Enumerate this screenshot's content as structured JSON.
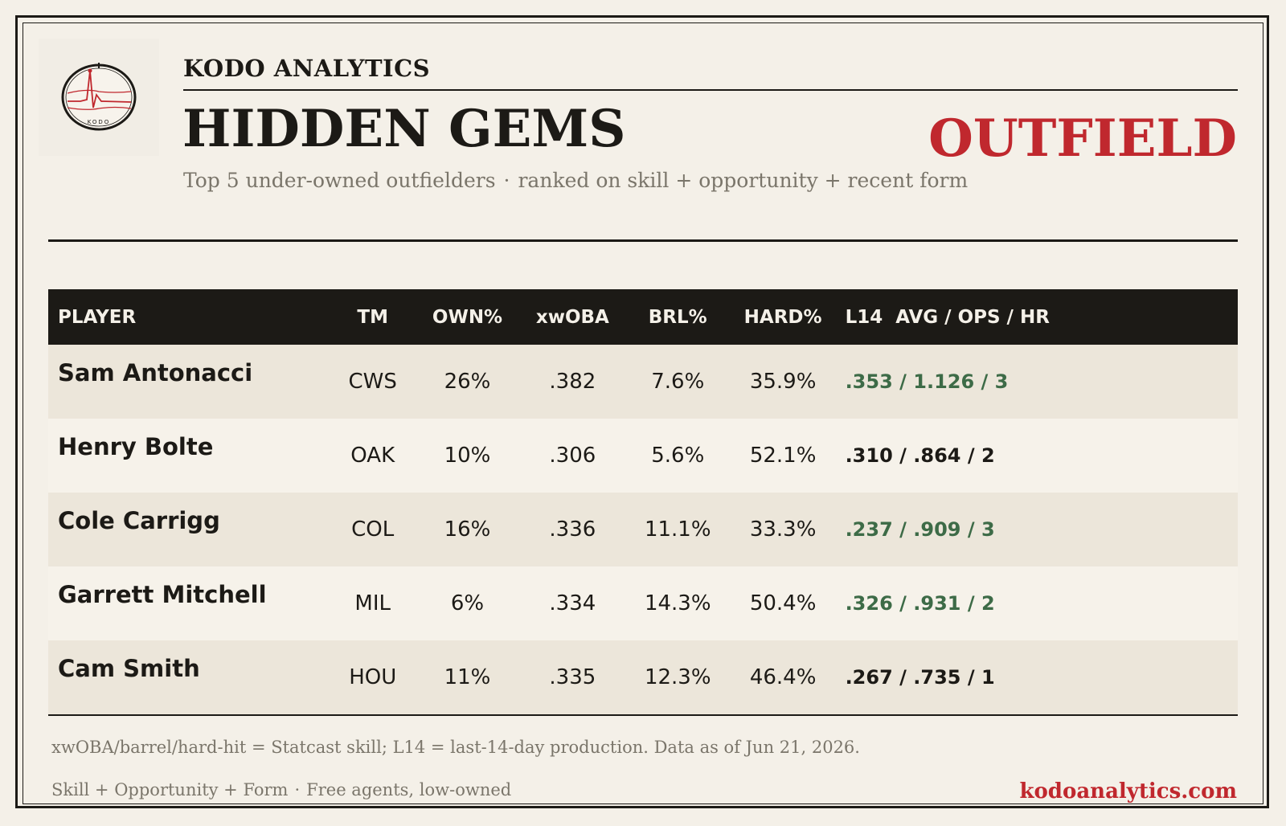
{
  "brand": {
    "name": "KODO ANALYTICS",
    "logo_text": "KODO"
  },
  "header": {
    "title": "HIDDEN GEMS",
    "position": "OUTFIELD",
    "subtitle_left": "Top 5 under-owned outfielders",
    "subtitle_sep": "·",
    "subtitle_right": "ranked on skill + opportunity + recent form"
  },
  "table": {
    "columns": [
      "PLAYER",
      "TM",
      "OWN%",
      "xwOBA",
      "BRL%",
      "HARD%",
      "L14  AVG / OPS / HR"
    ],
    "rows": [
      {
        "player": "Sam Antonacci",
        "team": "CWS",
        "own": "26%",
        "xwoba": ".382",
        "brl": "7.6%",
        "hard": "35.9%",
        "l14": ".353 / 1.126 / 3",
        "hot": true
      },
      {
        "player": "Henry Bolte",
        "team": "OAK",
        "own": "10%",
        "xwoba": ".306",
        "brl": "5.6%",
        "hard": "52.1%",
        "l14": ".310 / .864 / 2",
        "hot": false
      },
      {
        "player": "Cole Carrigg",
        "team": "COL",
        "own": "16%",
        "xwoba": ".336",
        "brl": "11.1%",
        "hard": "33.3%",
        "l14": ".237 / .909 / 3",
        "hot": true
      },
      {
        "player": "Garrett Mitchell",
        "team": "MIL",
        "own": "6%",
        "xwoba": ".334",
        "brl": "14.3%",
        "hard": "50.4%",
        "l14": ".326 / .931 / 2",
        "hot": true
      },
      {
        "player": "Cam Smith",
        "team": "HOU",
        "own": "11%",
        "xwoba": ".335",
        "brl": "12.3%",
        "hard": "46.4%",
        "l14": ".267 / .735 / 1",
        "hot": false
      }
    ]
  },
  "footer": {
    "note": "xwOBA/barrel/hard-hit = Statcast skill; L14 = last-14-day production. Data as of Jun 21, 2026.",
    "tagline_left": "Skill + Opportunity + Form",
    "tagline_sep": "·",
    "tagline_right": "Free agents, low-owned",
    "website": "kodoanalytics.com"
  },
  "colors": {
    "accent_red": "#c0282e",
    "hot_green": "#3d6b47",
    "ink": "#1c1a16",
    "paper": "#f4f0e8"
  }
}
